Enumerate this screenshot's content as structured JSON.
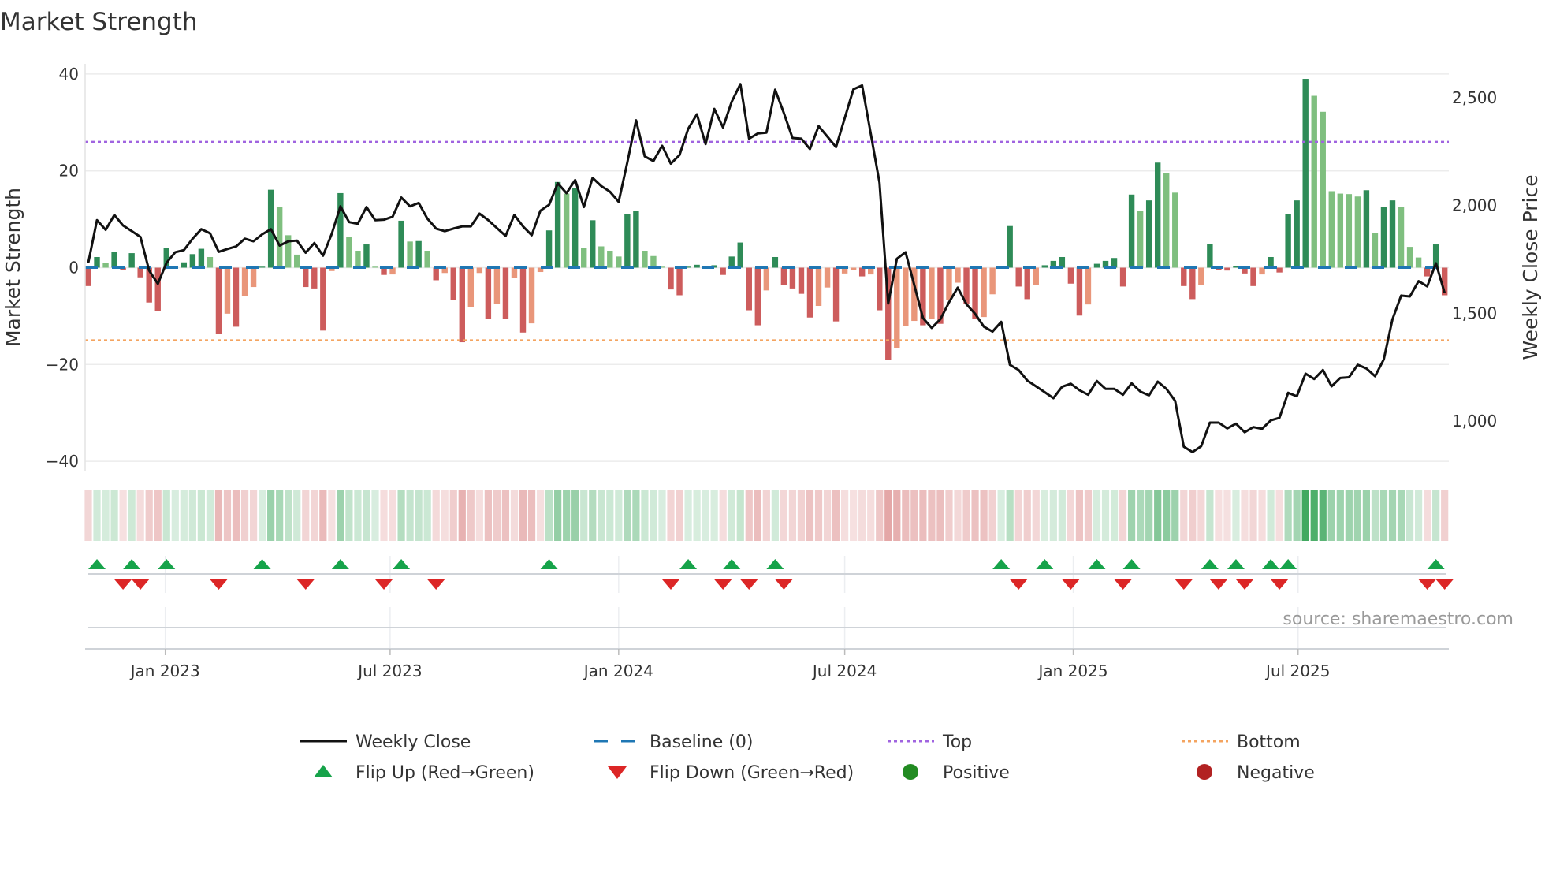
{
  "chart_data": {
    "type": "bar",
    "title": "Market Strength",
    "ylabel": "Market Strength",
    "y2label": "Weekly Close Price",
    "ylim": [
      -42.1,
      42.1
    ],
    "y2lim": [
      766,
      2657
    ],
    "yticks": [
      40,
      20,
      0,
      -20,
      -40
    ],
    "ytick_labels": [
      "40",
      "20",
      "0",
      "−20",
      "−40"
    ],
    "y2ticks": [
      1000,
      1500,
      2000,
      2500
    ],
    "y2tick_labels": [
      "1,000",
      "1,500",
      "2,000",
      "2,500"
    ],
    "x_start": "2022-10-31",
    "x_step": "1 week",
    "xticks": [
      {
        "date": "2023-01-01",
        "label": "Jan 2023"
      },
      {
        "date": "2023-07-01",
        "label": "Jul 2023"
      },
      {
        "date": "2024-01-01",
        "label": "Jan 2024"
      },
      {
        "date": "2024-07-01",
        "label": "Jul 2024"
      },
      {
        "date": "2025-01-01",
        "label": "Jan 2025"
      },
      {
        "date": "2025-07-01",
        "label": "Jul 2025"
      }
    ],
    "top_level": 26,
    "bottom_level": -15,
    "baseline": 0,
    "series": [
      {
        "name": "Market Strength",
        "values": [
          -3.8,
          2.2,
          1.0,
          3.3,
          -0.5,
          3.0,
          -2.0,
          -7.2,
          -9.0,
          4.1,
          0.3,
          1.1,
          2.8,
          3.9,
          2.2,
          -13.7,
          -9.5,
          -12.2,
          -5.9,
          -4.0,
          0.2,
          16.1,
          12.6,
          6.7,
          2.7,
          -4.0,
          -4.3,
          -13.0,
          -0.7,
          15.4,
          6.3,
          3.5,
          4.8,
          0.2,
          -1.5,
          -1.4,
          9.7,
          5.4,
          5.5,
          3.5,
          -2.6,
          -1.1,
          -6.7,
          -15.4,
          -8.2,
          -1.1,
          -10.6,
          -7.5,
          -10.6,
          -2.1,
          -13.4,
          -11.5,
          -0.9,
          7.7,
          17.7,
          15.3,
          16.5,
          4.1,
          9.8,
          4.4,
          3.5,
          2.3,
          11.0,
          11.7,
          3.5,
          2.4,
          0.2,
          -4.5,
          -5.7,
          0.2,
          0.6,
          0.2,
          0.5,
          -1.5,
          2.3,
          5.2,
          -8.8,
          -11.9,
          -4.7,
          2.2,
          -3.6,
          -4.3,
          -5.4,
          -10.3,
          -7.9,
          -4.1,
          -11.1,
          -1.2,
          -0.5,
          -1.8,
          -1.4,
          -8.8,
          -19.1,
          -16.6,
          -12.1,
          -11.0,
          -11.9,
          -10.6,
          -11.6,
          -6.7,
          -3.1,
          -7.5,
          -10.6,
          -10.2,
          -5.5,
          0.3,
          8.6,
          -3.9,
          -6.5,
          -3.5,
          0.5,
          1.4,
          2.2,
          -3.3,
          -9.9,
          -7.6,
          0.8,
          1.4,
          2.0,
          -3.9,
          15.1,
          11.7,
          13.9,
          21.7,
          19.6,
          15.5,
          -3.8,
          -6.5,
          -3.5,
          4.9,
          -0.5,
          -0.6,
          0.3,
          -1.2,
          -3.8,
          -1.4,
          2.2,
          -1.0,
          11.0,
          13.9,
          39.0,
          35.5,
          32.2,
          15.8,
          15.3,
          15.2,
          14.7,
          16.0,
          7.2,
          12.6,
          13.9,
          12.5,
          4.3,
          2.1,
          -1.8,
          4.8,
          -5.7
        ]
      },
      {
        "name": "Weekly Close",
        "axis": "right",
        "values": [
          1734,
          1932,
          1887,
          1956,
          1907,
          1881,
          1854,
          1698,
          1637,
          1734,
          1783,
          1793,
          1846,
          1890,
          1871,
          1785,
          1798,
          1810,
          1846,
          1834,
          1866,
          1890,
          1814,
          1834,
          1837,
          1781,
          1826,
          1767,
          1868,
          1996,
          1923,
          1915,
          1993,
          1932,
          1934,
          1948,
          2037,
          1996,
          2012,
          1939,
          1893,
          1881,
          1893,
          1903,
          1903,
          1962,
          1932,
          1895,
          1859,
          1956,
          1903,
          1862,
          1976,
          2003,
          2103,
          2057,
          2118,
          1993,
          2128,
          2090,
          2064,
          2017,
          2200,
          2395,
          2228,
          2206,
          2277,
          2194,
          2234,
          2356,
          2423,
          2285,
          2448,
          2362,
          2481,
          2563,
          2310,
          2334,
          2338,
          2537,
          2429,
          2313,
          2310,
          2262,
          2368,
          2320,
          2271,
          2405,
          2539,
          2557,
          2332,
          2106,
          1545,
          1753,
          1783,
          1631,
          1478,
          1432,
          1472,
          1551,
          1619,
          1542,
          1497,
          1438,
          1415,
          1460,
          1261,
          1237,
          1188,
          1161,
          1134,
          1106,
          1159,
          1173,
          1143,
          1122,
          1186,
          1149,
          1149,
          1122,
          1175,
          1137,
          1119,
          1183,
          1149,
          1094,
          881,
          856,
          883,
          993,
          993,
          966,
          988,
          948,
          972,
          964,
          1003,
          1015,
          1131,
          1115,
          1220,
          1195,
          1237,
          1161,
          1200,
          1203,
          1261,
          1244,
          1208,
          1286,
          1472,
          1582,
          1578,
          1649,
          1625,
          1732,
          1594
        ]
      }
    ],
    "legend": {
      "placement": "bottom",
      "items": [
        {
          "key": "close",
          "label": "Weekly Close"
        },
        {
          "key": "baseline",
          "label": "Baseline (0)"
        },
        {
          "key": "top",
          "label": "Top"
        },
        {
          "key": "bottom",
          "label": "Bottom"
        },
        {
          "key": "flip_up",
          "label": "Flip Up (Red→Green)"
        },
        {
          "key": "flip_down",
          "label": "Flip Down (Green→Red)"
        },
        {
          "key": "positive",
          "label": "Positive"
        },
        {
          "key": "negative",
          "label": "Negative"
        }
      ]
    },
    "source": "source: sharemaestro.com",
    "colors": {
      "pos_up": "#2e8b57",
      "pos_down": "#7fbf7f",
      "neg_down": "#cd5c5c",
      "neg_up": "#e9967a",
      "close": "#111111",
      "baseline": "#1f77b4",
      "top": "#a064e0",
      "bottom": "#f4a460",
      "flip_up": "#16a34a",
      "flip_down": "#dc2626",
      "positive": "#228b22",
      "negative": "#b22222"
    }
  }
}
